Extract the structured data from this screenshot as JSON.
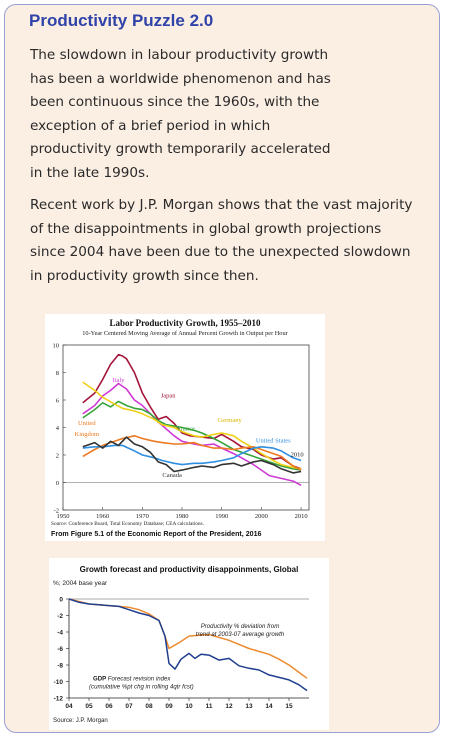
{
  "panel": {
    "title": "Productivity Puzzle 2.0",
    "paragraph1_lines": [
      "The slowdown in labour productivity growth",
      "has been a worldwide phenomenon and has",
      "been continuous since the 1960s, with the",
      "exception of a brief period in which",
      "productivity growth temporarily accelerated",
      "in the late 1990s."
    ],
    "paragraph2_lines": [
      "Recent work by J.P. Morgan shows that the vast majority",
      "of the disappointments in global growth projections",
      "since 2004 have been due to the unexpected slowdown",
      "in productivity growth since then."
    ]
  },
  "chart_data": [
    {
      "type": "line",
      "title": "Labor Productivity Growth, 1955–2010",
      "subtitle": "10-Year Centered Moving Average of Annual Percent Growth in Output per Hour",
      "xlabel": "",
      "ylabel": "",
      "xlim": [
        1950,
        2012
      ],
      "ylim": [
        -2,
        10
      ],
      "x_ticks": [
        1950,
        1960,
        1970,
        1980,
        1990,
        2000,
        2010
      ],
      "y_ticks": [
        -2,
        0,
        2,
        4,
        6,
        8,
        10
      ],
      "grid": false,
      "source": "Source: Conference Board, Total Economy Database; CEA calculations.",
      "caption": "From Figure 5.1 of the Economic Report of the President, 2016",
      "series_labels": [
        "Japan",
        "Italy",
        "France",
        "Germany",
        "United Kingdom",
        "United States",
        "Canada",
        "2010"
      ],
      "series": [
        {
          "name": "Japan",
          "color": "#a3153a",
          "x": [
            1955,
            1958,
            1960,
            1962,
            1964,
            1965,
            1966,
            1968,
            1970,
            1972,
            1974,
            1976,
            1978,
            1980,
            1982,
            1985,
            1988,
            1990,
            1993,
            1995,
            1998,
            2000,
            2003,
            2005,
            2008,
            2010
          ],
          "y": [
            5.8,
            6.5,
            7.5,
            8.6,
            9.3,
            9.2,
            9.0,
            8.0,
            6.5,
            5.5,
            4.6,
            4.8,
            4.3,
            3.6,
            3.4,
            3.3,
            3.2,
            3.5,
            3.0,
            2.6,
            2.4,
            2.0,
            1.7,
            1.8,
            1.2,
            1.0
          ]
        },
        {
          "name": "Italy",
          "color": "#cf3ad6",
          "x": [
            1955,
            1958,
            1960,
            1962,
            1964,
            1966,
            1968,
            1970,
            1972,
            1974,
            1976,
            1978,
            1980,
            1983,
            1985,
            1988,
            1990,
            1993,
            1995,
            1998,
            2000,
            2002,
            2005,
            2008,
            2010
          ],
          "y": [
            5.0,
            5.6,
            6.3,
            6.7,
            7.2,
            6.8,
            6.0,
            5.6,
            5.0,
            4.4,
            3.9,
            3.4,
            3.0,
            2.8,
            2.7,
            2.8,
            2.5,
            2.1,
            1.8,
            1.3,
            0.9,
            0.5,
            0.3,
            0.1,
            -0.2
          ]
        },
        {
          "name": "France",
          "color": "#37a33a",
          "x": [
            1955,
            1958,
            1960,
            1962,
            1964,
            1966,
            1968,
            1970,
            1972,
            1974,
            1976,
            1978,
            1980,
            1983,
            1985,
            1988,
            1990,
            1993,
            1995,
            1998,
            2000,
            2003,
            2005,
            2008,
            2010
          ],
          "y": [
            4.7,
            5.3,
            5.8,
            5.5,
            5.9,
            5.6,
            5.4,
            5.3,
            5.0,
            4.5,
            4.2,
            4.1,
            4.0,
            3.8,
            3.6,
            3.2,
            2.9,
            2.4,
            2.2,
            1.9,
            1.7,
            1.4,
            1.2,
            1.0,
            0.9
          ]
        },
        {
          "name": "Germany",
          "color": "#f0cf17",
          "x": [
            1955,
            1958,
            1960,
            1963,
            1965,
            1968,
            1970,
            1973,
            1975,
            1978,
            1980,
            1983,
            1985,
            1988,
            1990,
            1993,
            1995,
            1998,
            2000,
            2003,
            2005,
            2008,
            2010
          ],
          "y": [
            7.3,
            6.7,
            6.2,
            5.7,
            5.4,
            5.2,
            5.0,
            4.6,
            4.2,
            4.0,
            3.7,
            3.4,
            3.3,
            3.5,
            3.6,
            3.4,
            3.0,
            2.5,
            2.1,
            1.6,
            1.3,
            1.1,
            1.0
          ]
        },
        {
          "name": "United Kingdom",
          "color": "#ee7a22",
          "x": [
            1955,
            1958,
            1960,
            1963,
            1965,
            1968,
            1970,
            1973,
            1975,
            1978,
            1980,
            1983,
            1985,
            1988,
            1990,
            1993,
            1995,
            1998,
            2000,
            2003,
            2005,
            2008,
            2010
          ],
          "y": [
            1.9,
            2.4,
            2.7,
            3.0,
            3.2,
            3.4,
            3.2,
            3.0,
            2.9,
            2.8,
            2.8,
            2.9,
            2.7,
            2.5,
            2.5,
            2.4,
            2.5,
            2.6,
            2.4,
            2.1,
            1.9,
            1.2,
            0.9
          ]
        },
        {
          "name": "United States",
          "color": "#2f8fe0",
          "x": [
            1955,
            1958,
            1960,
            1963,
            1965,
            1968,
            1970,
            1973,
            1975,
            1978,
            1980,
            1983,
            1985,
            1988,
            1990,
            1993,
            1995,
            1998,
            2000,
            2003,
            2005,
            2008,
            2010
          ],
          "y": [
            2.5,
            2.6,
            2.6,
            2.7,
            2.7,
            2.3,
            2.0,
            1.8,
            1.6,
            1.4,
            1.3,
            1.4,
            1.4,
            1.5,
            1.6,
            1.8,
            2.1,
            2.5,
            2.6,
            2.5,
            2.3,
            1.8,
            1.6
          ]
        },
        {
          "name": "Canada",
          "color": "#333333",
          "x": [
            1955,
            1958,
            1960,
            1962,
            1964,
            1966,
            1968,
            1970,
            1972,
            1974,
            1976,
            1978,
            1980,
            1983,
            1985,
            1988,
            1990,
            1993,
            1995,
            1998,
            2000,
            2003,
            2005,
            2008,
            2010
          ],
          "y": [
            2.6,
            2.9,
            2.5,
            3.0,
            2.7,
            3.3,
            2.8,
            2.6,
            2.2,
            1.5,
            1.3,
            0.8,
            0.9,
            1.1,
            1.2,
            1.1,
            1.3,
            1.4,
            1.2,
            1.5,
            1.6,
            1.3,
            1.0,
            0.7,
            0.8
          ]
        }
      ]
    },
    {
      "type": "line",
      "title": "Growth forecast and productivity disappoinments, Global",
      "subtitle": "%; 2004 base year",
      "xlabel": "",
      "ylabel": "",
      "xlim": [
        2004,
        2016
      ],
      "ylim": [
        -12,
        0
      ],
      "categories": [
        "04",
        "05",
        "06",
        "07",
        "08",
        "09",
        "10",
        "11",
        "12",
        "13",
        "14",
        "15"
      ],
      "y_ticks": [
        0,
        -2,
        -4,
        -6,
        -8,
        -10,
        -12
      ],
      "grid": false,
      "source": "Source: J.P. Morgan",
      "annotations": {
        "orange_line1": "Productivity % deviation from",
        "orange_line2": "trend at 2003-07 average growth",
        "blue_line1_bold": "GDP",
        "blue_line1_rest": "Forecast revision index",
        "blue_line2": "(cumulative %pt chg in rolling 4qtr fcst)"
      },
      "series": [
        {
          "name": "Productivity % deviation from trend at 2003-07 average growth",
          "color": "#ed8b2f",
          "x": [
            2004,
            2004.5,
            2005,
            2006,
            2006.5,
            2007,
            2007.5,
            2008,
            2008.5,
            2008.8,
            2009,
            2009.5,
            2010,
            2010.5,
            2011,
            2012,
            2013,
            2014,
            2014.5,
            2015,
            2015.5,
            2015.9
          ],
          "y": [
            0,
            -0.3,
            -0.6,
            -0.8,
            -0.9,
            -1.0,
            -1.3,
            -1.8,
            -2.6,
            -4.5,
            -6.0,
            -5.3,
            -4.5,
            -4.4,
            -4.3,
            -5.0,
            -6.0,
            -6.7,
            -7.3,
            -8.0,
            -8.9,
            -9.6
          ]
        },
        {
          "name": "GDP Forecast revision index (cumulative %pt chg in rolling 4qtr fcst)",
          "color": "#1f3e8e",
          "x": [
            2004,
            2004.5,
            2005,
            2005.5,
            2006,
            2006.5,
            2007,
            2007.5,
            2008,
            2008.5,
            2008.8,
            2009,
            2009.3,
            2009.6,
            2010,
            2010.3,
            2010.6,
            2011,
            2011.5,
            2012,
            2012.5,
            2013,
            2013.5,
            2014,
            2014.5,
            2015,
            2015.5,
            2015.9
          ],
          "y": [
            0,
            -0.4,
            -0.6,
            -0.7,
            -0.8,
            -0.9,
            -1.3,
            -1.7,
            -2.0,
            -2.6,
            -4.5,
            -7.8,
            -8.5,
            -7.3,
            -6.6,
            -7.2,
            -6.7,
            -6.8,
            -7.4,
            -7.2,
            -8.1,
            -8.4,
            -8.6,
            -9.2,
            -9.5,
            -9.8,
            -10.4,
            -11.1
          ]
        }
      ]
    }
  ]
}
